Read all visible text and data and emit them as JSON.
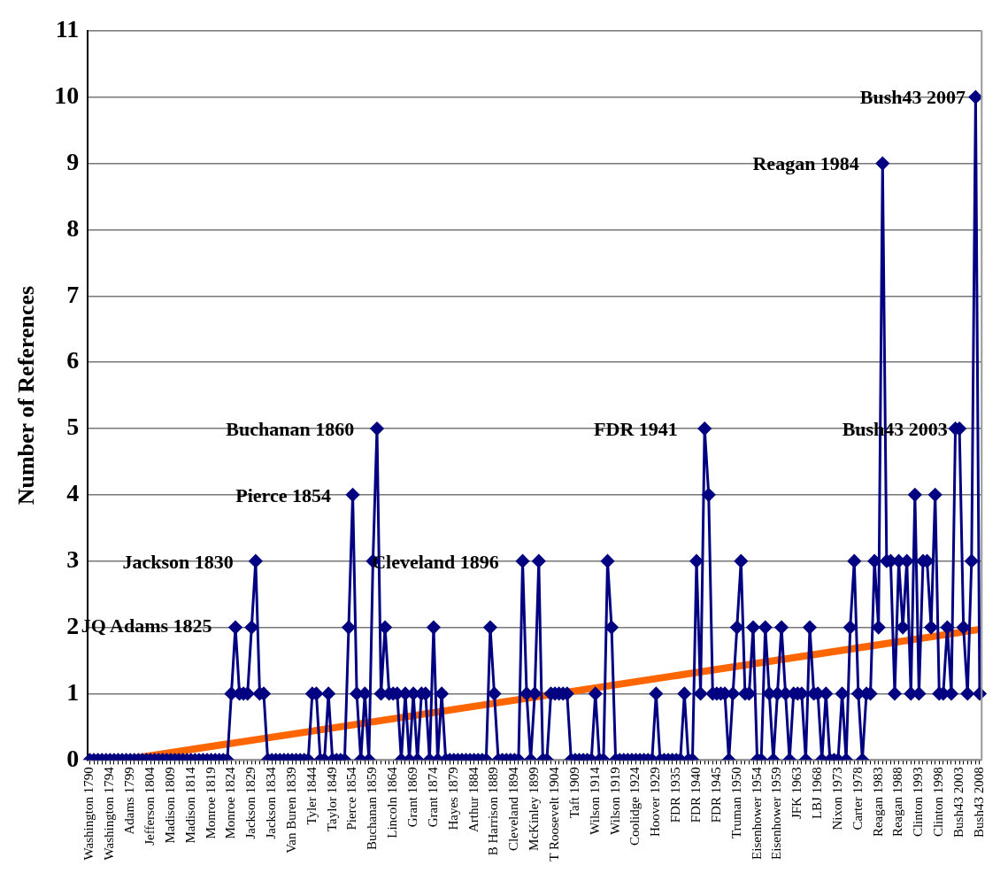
{
  "chart_data": {
    "type": "line",
    "ylabel": "Number of References",
    "categories": [
      "Washington 1790",
      null,
      null,
      null,
      null,
      "Washington 1794",
      null,
      null,
      null,
      null,
      "Adams 1799",
      null,
      null,
      null,
      null,
      "Jefferson 1804",
      null,
      null,
      null,
      null,
      "Madison 1809",
      null,
      null,
      null,
      null,
      "Madison 1814",
      null,
      null,
      null,
      null,
      "Monroe 1819",
      null,
      null,
      null,
      null,
      "Monroe 1824",
      null,
      null,
      null,
      null,
      "Jackson 1829",
      null,
      null,
      null,
      null,
      "Jackson 1834",
      null,
      null,
      null,
      null,
      "Van Buren 1839",
      null,
      null,
      null,
      null,
      "Tyler 1844",
      null,
      null,
      null,
      null,
      "Taylor 1849",
      null,
      null,
      null,
      null,
      "Pierce 1854",
      null,
      null,
      null,
      null,
      "Buchanan 1859",
      null,
      null,
      null,
      null,
      "Lincoln 1864",
      null,
      null,
      null,
      null,
      "Grant 1869",
      null,
      null,
      null,
      null,
      "Grant 1874",
      null,
      null,
      null,
      null,
      "Hayes 1879",
      null,
      null,
      null,
      null,
      "Arthur 1884",
      null,
      null,
      null,
      null,
      "B Harrison 1889",
      null,
      null,
      null,
      null,
      "Cleveland 1894",
      null,
      null,
      null,
      null,
      "McKinley 1899",
      null,
      null,
      null,
      null,
      "T Roosevelt 1904",
      null,
      null,
      null,
      null,
      "Taft 1909",
      null,
      null,
      null,
      null,
      "Wilson 1914",
      null,
      null,
      null,
      null,
      "Wilson 1919",
      null,
      null,
      null,
      null,
      "Coolidge 1924",
      null,
      null,
      null,
      null,
      "Hoover 1929",
      null,
      null,
      null,
      null,
      "FDR 1935",
      null,
      null,
      null,
      null,
      "FDR 1940",
      null,
      null,
      null,
      null,
      "FDR 1945",
      null,
      null,
      null,
      null,
      "Truman 1950",
      null,
      null,
      null,
      null,
      "Eisenhower 1954",
      null,
      null,
      null,
      null,
      "Eisenhower 1959",
      null,
      null,
      null,
      null,
      "JFK 1963",
      null,
      null,
      null,
      null,
      "LBJ 1968",
      null,
      null,
      null,
      null,
      "Nixon 1973",
      null,
      null,
      null,
      null,
      "Carter 1978",
      null,
      null,
      null,
      null,
      "Reagan 1983",
      null,
      null,
      null,
      null,
      "Reagan 1988",
      null,
      null,
      null,
      null,
      "Clinton 1993",
      null,
      null,
      null,
      null,
      "Clinton 1998",
      null,
      null,
      null,
      null,
      "Bush43 2003",
      null,
      null,
      null,
      null,
      "Bush43 2008"
    ],
    "series": [
      {
        "color": "#000080",
        "marker": "diamond",
        "values": [
          0,
          0,
          0,
          0,
          0,
          0,
          0,
          0,
          0,
          0,
          0,
          0,
          0,
          0,
          0,
          0,
          0,
          0,
          0,
          0,
          0,
          0,
          0,
          0,
          0,
          0,
          0,
          0,
          0,
          0,
          0,
          0,
          0,
          0,
          0,
          1,
          2,
          1,
          1,
          1,
          2,
          3,
          1,
          1,
          0,
          0,
          0,
          0,
          0,
          0,
          0,
          0,
          0,
          0,
          0,
          1,
          1,
          0,
          0,
          1,
          0,
          0,
          0,
          0,
          2,
          4,
          1,
          0,
          1,
          0,
          3,
          5,
          1,
          2,
          1,
          1,
          1,
          0,
          1,
          0,
          1,
          0,
          1,
          1,
          0,
          2,
          0,
          1,
          0,
          0,
          0,
          0,
          0,
          0,
          0,
          0,
          0,
          0,
          0,
          2,
          1,
          0,
          0,
          0,
          0,
          0,
          0,
          3,
          1,
          0,
          1,
          3,
          0,
          0,
          1,
          1,
          1,
          1,
          1,
          0,
          0,
          0,
          0,
          0,
          0,
          1,
          0,
          0,
          3,
          2,
          0,
          0,
          0,
          0,
          0,
          0,
          0,
          0,
          0,
          0,
          1,
          0,
          0,
          0,
          0,
          0,
          0,
          1,
          0,
          0,
          3,
          1,
          5,
          4,
          1,
          1,
          1,
          1,
          0,
          1,
          2,
          3,
          1,
          1,
          2,
          0,
          0,
          2,
          1,
          0,
          1,
          2,
          1,
          0,
          1,
          1,
          1,
          0,
          2,
          1,
          1,
          0,
          1,
          0,
          0,
          0,
          1,
          0,
          2,
          3,
          1,
          0,
          1,
          1,
          3,
          2,
          9,
          3,
          3,
          1,
          3,
          2,
          3,
          1,
          4,
          1,
          3,
          3,
          2,
          4,
          1,
          1,
          2,
          1,
          5,
          5,
          2,
          1,
          3,
          10,
          1
        ]
      },
      {
        "type": "line",
        "color": "#ff6600",
        "marker": "none",
        "values": [
          null,
          null,
          null,
          null,
          null,
          null,
          null,
          null,
          0,
          null,
          null,
          null,
          null,
          null,
          null,
          null,
          null,
          null,
          null,
          null,
          null,
          null,
          null,
          null,
          null,
          null,
          null,
          null,
          null,
          null,
          null,
          null,
          null,
          null,
          null,
          null,
          null,
          null,
          null,
          null,
          null,
          null,
          null,
          null,
          null,
          null,
          null,
          null,
          null,
          null,
          null,
          null,
          null,
          null,
          null,
          null,
          null,
          null,
          null,
          null,
          null,
          null,
          null,
          null,
          null,
          null,
          null,
          null,
          null,
          null,
          null,
          null,
          null,
          null,
          null,
          null,
          null,
          null,
          null,
          null,
          null,
          null,
          null,
          null,
          null,
          null,
          null,
          null,
          null,
          null,
          null,
          null,
          null,
          null,
          null,
          null,
          null,
          null,
          null,
          null,
          null,
          null,
          null,
          null,
          null,
          null,
          null,
          null,
          null,
          null,
          null,
          null,
          null,
          null,
          null,
          null,
          null,
          null,
          null,
          null,
          null,
          null,
          null,
          null,
          null,
          null,
          null,
          null,
          null,
          null,
          null,
          null,
          null,
          null,
          null,
          null,
          null,
          null,
          null,
          null,
          null,
          null,
          null,
          null,
          null,
          null,
          null,
          null,
          null,
          null,
          null,
          null,
          null,
          null,
          null,
          null,
          null,
          null,
          null,
          null,
          null,
          null,
          null,
          null,
          null,
          null,
          null,
          null,
          null,
          null,
          null,
          null,
          null,
          null,
          null,
          null,
          null,
          null,
          null,
          null,
          null,
          null,
          null,
          null,
          null,
          null,
          null,
          null,
          null,
          null,
          null,
          null,
          null,
          null,
          null,
          null,
          null,
          null,
          null,
          null,
          null,
          null,
          null,
          null,
          null,
          null,
          null,
          null,
          null,
          null,
          null,
          null,
          null,
          null,
          null,
          null,
          null,
          null,
          null,
          null,
          1.97
        ]
      }
    ],
    "ylim": [
      0,
      11
    ],
    "yticks": [
      0,
      1,
      2,
      3,
      4,
      5,
      6,
      7,
      8,
      9,
      10,
      11
    ],
    "grid": "y",
    "legend": false,
    "annotations": [
      "JQ Adams 1825",
      "Jackson 1830",
      "Pierce 1854",
      "Buchanan 1860",
      "Cleveland 1896",
      "FDR 1941",
      "Reagan 1984",
      "Bush43 2003",
      "Bush43 2007"
    ]
  }
}
